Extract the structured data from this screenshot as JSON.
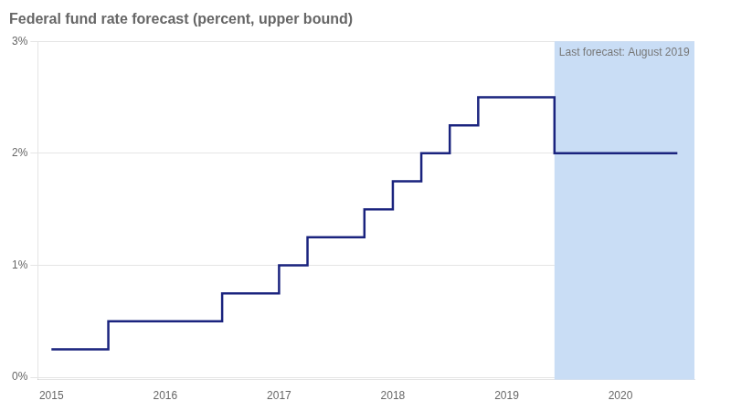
{
  "chart_data": {
    "type": "line",
    "title": "Federal fund rate forecast (percent, upper bound)",
    "annotation": "Last forecast: August 2019",
    "color": "#1a237e",
    "x": [
      2015.0,
      2015.5,
      2015.5,
      2015.75,
      2015.75,
      2016.25,
      2016.25,
      2016.5,
      2016.5,
      2017.0,
      2017.0,
      2017.25,
      2017.25,
      2017.5,
      2017.5,
      2017.75,
      2017.75,
      2018.0,
      2018.0,
      2018.25,
      2018.25,
      2018.5,
      2018.5,
      2018.75,
      2018.75,
      2019.0,
      2019.0,
      2019.25,
      2019.25,
      2019.42,
      2019.42,
      2019.75,
      2019.75,
      2020.5
    ],
    "values": [
      0.25,
      0.25,
      0.5,
      0.5,
      0.5,
      0.5,
      0.5,
      0.5,
      0.75,
      0.75,
      1.0,
      1.0,
      1.25,
      1.25,
      1.25,
      1.25,
      1.5,
      1.5,
      1.75,
      1.75,
      2.0,
      2.0,
      2.25,
      2.25,
      2.5,
      2.5,
      2.5,
      2.5,
      2.5,
      2.5,
      2.0,
      2.0,
      2.0,
      2.0
    ],
    "shaded_span": {
      "from": 2019.42,
      "color": "#c9ddf5"
    },
    "xlim": [
      2014.88,
      2020.65
    ],
    "ylim": [
      -0.02,
      3.0
    ],
    "xticks": [
      2015,
      2016,
      2017,
      2018,
      2019,
      2020
    ],
    "yticks": [
      {
        "value": 0,
        "label": "0%"
      },
      {
        "value": 1,
        "label": "1%"
      },
      {
        "value": 2,
        "label": "2%"
      },
      {
        "value": 3,
        "label": "3%"
      }
    ],
    "grid": "y"
  }
}
